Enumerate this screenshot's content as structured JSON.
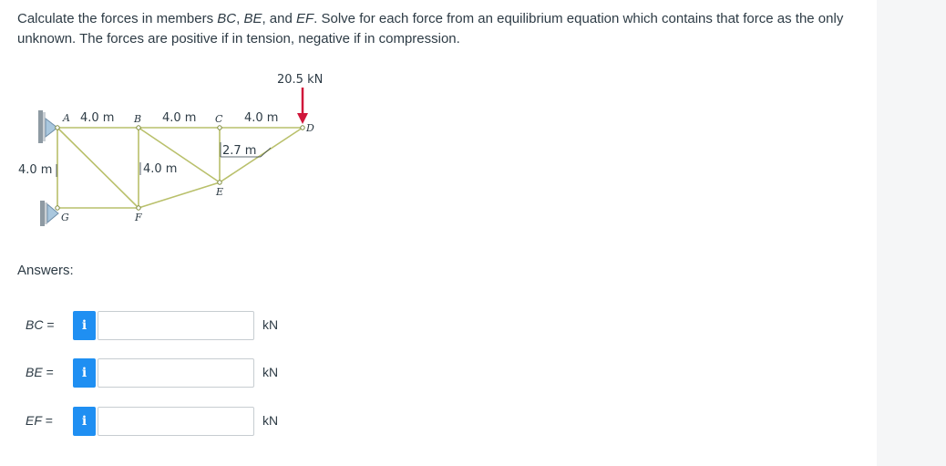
{
  "question": {
    "p1": "Calculate the forces in members ",
    "bc": "BC",
    "sep1": ", ",
    "be": "BE",
    "sep2": ", and ",
    "ef": "EF",
    "p2": ". Solve for each force from an equilibrium equation which contains that force as the only unknown. The forces are positive if in tension, negative if in compression."
  },
  "figure": {
    "load": "20.5 kN",
    "dim_ab": "4.0 m",
    "dim_bc": "4.0 m",
    "dim_cd": "4.0 m",
    "dim_height": "4.0 m",
    "dim_ce": "2.7 m",
    "dim_bf": "4.0 m",
    "node_a": "A",
    "node_b": "B",
    "node_c": "C",
    "node_d": "D",
    "node_e": "E",
    "node_f": "F",
    "node_g": "G",
    "load_color": "#d0163a"
  },
  "answers_label": "Answers:",
  "answers": [
    {
      "var": "BC",
      "eq": " =",
      "info_icon": "i",
      "value": "",
      "unit": "kN"
    },
    {
      "var": "BE",
      "eq": " =",
      "info_icon": "i",
      "value": "",
      "unit": "kN"
    },
    {
      "var": "EF",
      "eq": " =",
      "info_icon": "i",
      "value": "",
      "unit": "kN"
    }
  ]
}
